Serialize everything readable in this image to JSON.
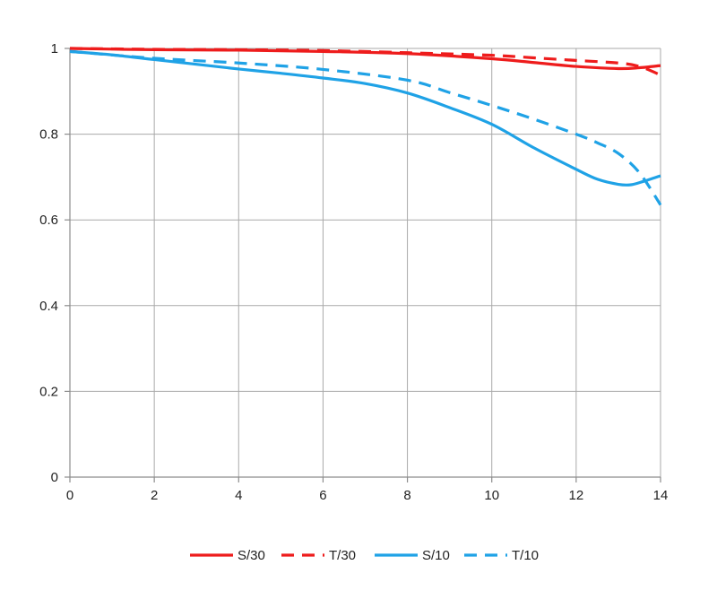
{
  "chart_data": {
    "type": "line",
    "title": "",
    "xlabel": "",
    "ylabel": "",
    "xlim": [
      0,
      14
    ],
    "ylim": [
      0,
      1
    ],
    "x_ticks": [
      0,
      2,
      4,
      6,
      8,
      10,
      12,
      14
    ],
    "y_ticks": [
      0,
      0.2,
      0.4,
      0.6,
      0.8,
      1
    ],
    "x_tick_labels": [
      "0",
      "2",
      "4",
      "6",
      "8",
      "10",
      "12",
      "14"
    ],
    "y_tick_labels": [
      "0",
      "0.2",
      "0.4",
      "0.6",
      "0.8",
      "1"
    ],
    "grid": true,
    "legend_position": "bottom",
    "series": [
      {
        "name": "S/30",
        "color": "#ee1c1c",
        "dash": "solid",
        "points": [
          [
            0,
            1.0
          ],
          [
            2,
            0.997
          ],
          [
            4,
            0.996
          ],
          [
            6,
            0.993
          ],
          [
            8,
            0.988
          ],
          [
            10,
            0.976
          ],
          [
            11,
            0.967
          ],
          [
            12,
            0.958
          ],
          [
            13,
            0.953
          ],
          [
            13.5,
            0.955
          ],
          [
            14,
            0.96
          ]
        ]
      },
      {
        "name": "T/30",
        "color": "#ee1c1c",
        "dash": "dashed",
        "points": [
          [
            0,
            1.0
          ],
          [
            2,
            0.998
          ],
          [
            4,
            0.997
          ],
          [
            6,
            0.995
          ],
          [
            8,
            0.99
          ],
          [
            10,
            0.984
          ],
          [
            11,
            0.978
          ],
          [
            12,
            0.972
          ],
          [
            13,
            0.966
          ],
          [
            13.5,
            0.958
          ],
          [
            14,
            0.938
          ]
        ]
      },
      {
        "name": "S/10",
        "color": "#1fa2e6",
        "dash": "solid",
        "points": [
          [
            0,
            0.993
          ],
          [
            1,
            0.985
          ],
          [
            2,
            0.974
          ],
          [
            3,
            0.963
          ],
          [
            4,
            0.952
          ],
          [
            5,
            0.942
          ],
          [
            6,
            0.931
          ],
          [
            7,
            0.918
          ],
          [
            8,
            0.896
          ],
          [
            9,
            0.862
          ],
          [
            10,
            0.823
          ],
          [
            11,
            0.768
          ],
          [
            12,
            0.718
          ],
          [
            12.5,
            0.695
          ],
          [
            13,
            0.683
          ],
          [
            13.3,
            0.682
          ],
          [
            13.6,
            0.69
          ],
          [
            14,
            0.703
          ]
        ]
      },
      {
        "name": "T/10",
        "color": "#1fa2e6",
        "dash": "dashed",
        "points": [
          [
            0,
            0.993
          ],
          [
            2,
            0.977
          ],
          [
            4,
            0.966
          ],
          [
            6,
            0.951
          ],
          [
            8,
            0.926
          ],
          [
            9,
            0.897
          ],
          [
            10,
            0.867
          ],
          [
            11,
            0.835
          ],
          [
            12,
            0.8
          ],
          [
            12.5,
            0.78
          ],
          [
            13,
            0.755
          ],
          [
            13.5,
            0.71
          ],
          [
            14,
            0.635
          ]
        ]
      }
    ]
  }
}
